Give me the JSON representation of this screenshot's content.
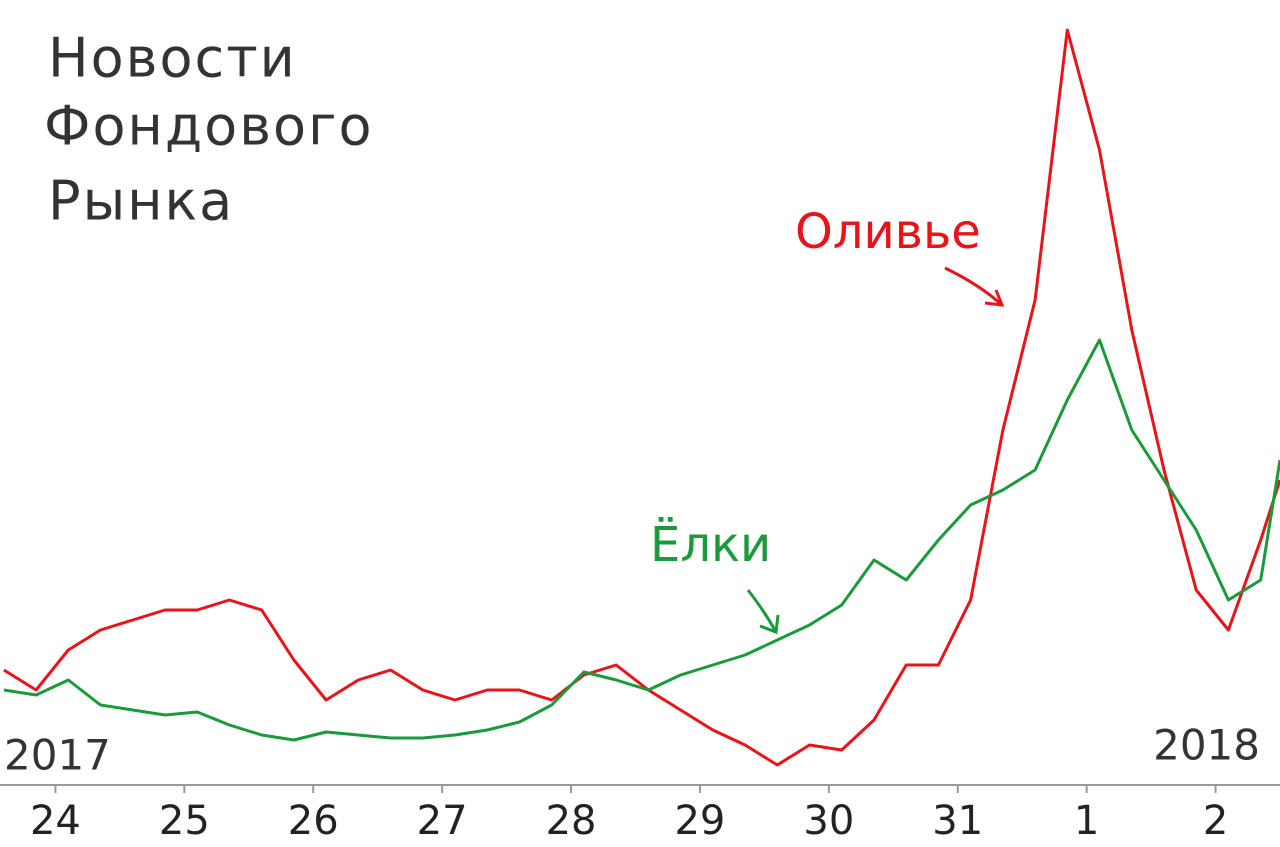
{
  "chart_data": {
    "type": "line",
    "title": [
      "Новости",
      "Фондового",
      "Рынка"
    ],
    "x": [
      -0.4,
      -0.15,
      0.1,
      0.35,
      0.6,
      0.85,
      1.1,
      1.35,
      1.6,
      1.85,
      2.1,
      2.35,
      2.6,
      2.85,
      3.1,
      3.35,
      3.6,
      3.85,
      4.1,
      4.35,
      4.6,
      4.85,
      5.1,
      5.35,
      5.6,
      5.85,
      6.1,
      6.35,
      6.6,
      6.85,
      7.1,
      7.35,
      7.6,
      7.85,
      8.1,
      8.35,
      8.6,
      8.85,
      9.1,
      9.35,
      9.5
    ],
    "series": [
      {
        "name": "Оливье",
        "color": "#e8141a",
        "values": [
          115,
          95,
          135,
          155,
          165,
          175,
          175,
          185,
          175,
          125,
          85,
          105,
          115,
          95,
          85,
          95,
          95,
          85,
          110,
          120,
          95,
          75,
          55,
          40,
          20,
          40,
          35,
          65,
          120,
          120,
          185,
          355,
          485,
          755,
          635,
          455,
          315,
          195,
          155,
          245,
          305
        ]
      },
      {
        "name": "Ёлки",
        "color": "#1a9a3a",
        "values": [
          95,
          90,
          105,
          80,
          75,
          70,
          73,
          60,
          50,
          45,
          53,
          50,
          47,
          47,
          50,
          55,
          63,
          80,
          113,
          105,
          95,
          110,
          120,
          130,
          145,
          160,
          180,
          225,
          205,
          245,
          280,
          295,
          315,
          385,
          445,
          355,
          305,
          255,
          185,
          205,
          325
        ]
      }
    ],
    "xlim": [
      -0.43,
      9.5
    ],
    "ylim": [
      0,
      785
    ],
    "xticks": [
      {
        "value": 0,
        "label": "24"
      },
      {
        "value": 1,
        "label": "25"
      },
      {
        "value": 2,
        "label": "26"
      },
      {
        "value": 3,
        "label": "27"
      },
      {
        "value": 4,
        "label": "28"
      },
      {
        "value": 5,
        "label": "29"
      },
      {
        "value": 6,
        "label": "30"
      },
      {
        "value": 7,
        "label": "31"
      },
      {
        "value": 8,
        "label": "1"
      },
      {
        "value": 9,
        "label": "2"
      }
    ],
    "start_label": "2017",
    "end_label": "2018"
  }
}
